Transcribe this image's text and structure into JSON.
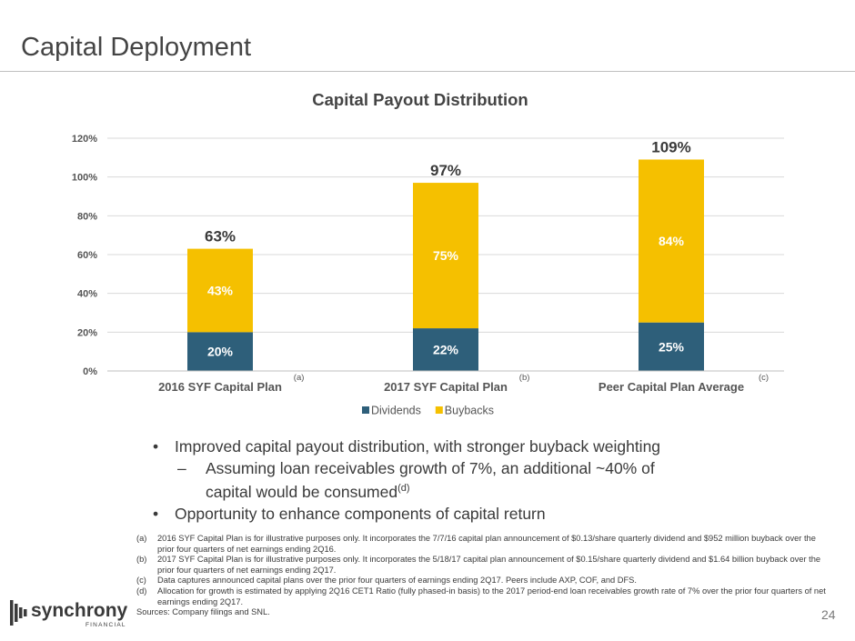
{
  "page": {
    "title": "Capital Deployment",
    "page_number": "24"
  },
  "chart_data": {
    "type": "bar",
    "stacked": true,
    "title": "Capital Payout Distribution",
    "categories": [
      "2016 SYF Capital Plan",
      "2017 SYF Capital Plan",
      "Peer Capital Plan Average"
    ],
    "category_notes": [
      "(a)",
      "(b)",
      "(c)"
    ],
    "series": [
      {
        "name": "Dividends",
        "values": [
          20,
          22,
          25
        ],
        "labels": [
          "20%",
          "22%",
          "25%"
        ],
        "color": "#2e5f7a"
      },
      {
        "name": "Buybacks",
        "values": [
          43,
          75,
          84
        ],
        "labels": [
          "43%",
          "75%",
          "84%"
        ],
        "color": "#f5c000"
      }
    ],
    "totals": [
      "63%",
      "97%",
      "109%"
    ],
    "total_values": [
      63,
      97,
      109
    ],
    "y_ticks": [
      "0%",
      "20%",
      "40%",
      "60%",
      "80%",
      "100%",
      "120%"
    ],
    "ylim": [
      0,
      120
    ],
    "grid": true,
    "legend": "bottom"
  },
  "bullets": {
    "b1": "Improved capital payout distribution, with stronger buyback weighting",
    "sub1_line1": "Assuming loan receivables growth of 7%, an additional ~40% of",
    "sub1_line2": "capital would be consumed",
    "sub1_note": "(d)",
    "b2": "Opportunity to enhance components of capital return"
  },
  "footnotes": [
    {
      "letter": "(a)",
      "text": "2016 SYF Capital Plan is for illustrative purposes only. It incorporates the 7/7/16 capital plan announcement of $0.13/share quarterly dividend and $952 million buyback over the prior four quarters of net earnings ending 2Q16."
    },
    {
      "letter": "(b)",
      "text": "2017 SYF Capital Plan is for illustrative purposes only.  It incorporates the 5/18/17 capital plan announcement of $0.15/share quarterly dividend and $1.64 billion buyback over the prior four quarters of net earnings ending 2Q17."
    },
    {
      "letter": "(c)",
      "text": "Data captures announced capital plans over the prior four quarters of earnings ending 2Q17. Peers include AXP, COF, and DFS."
    },
    {
      "letter": "(d)",
      "text": "Allocation for growth is estimated by applying 2Q16 CET1 Ratio (fully phased-in basis) to the 2017 period-end loan receivables growth rate of 7% over the prior four quarters of net earnings ending 2Q17."
    }
  ],
  "sources": "Sources: Company filings and SNL.",
  "logo": {
    "name": "synchrony",
    "sub": "FINANCIAL",
    "icon": "synchrony-logo-icon",
    "color": "#3a3a3a"
  }
}
